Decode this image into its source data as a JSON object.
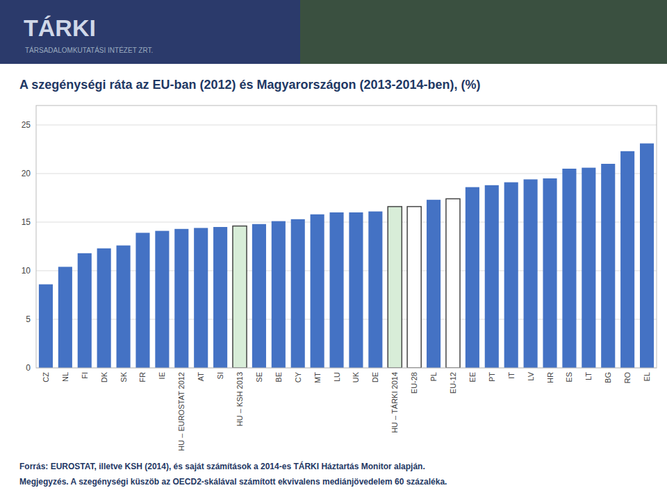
{
  "chart_data": {
    "type": "bar",
    "title": "A szegénységi ráta az EU-ban (2012) és Magyarországon (2013-2014-ben), (%)",
    "categories": [
      "CZ",
      "NL",
      "FI",
      "DK",
      "SK",
      "FR",
      "IE",
      "HU – EUROSTAT 2012",
      "AT",
      "SI",
      "HU – KSH 2013",
      "SE",
      "BE",
      "CY",
      "MT",
      "LU",
      "UK",
      "DE",
      "HU – TÁRKI 2014",
      "EU-28",
      "PL",
      "EU-12",
      "EE",
      "PT",
      "IT",
      "LV",
      "HR",
      "ES",
      "LT",
      "BG",
      "RO",
      "EL"
    ],
    "values": [
      8.6,
      10.4,
      11.8,
      12.3,
      12.6,
      13.9,
      14.1,
      14.3,
      14.4,
      14.5,
      14.6,
      14.8,
      15.1,
      15.3,
      15.8,
      16.0,
      16.0,
      16.1,
      16.6,
      16.6,
      17.3,
      17.4,
      18.6,
      18.8,
      19.1,
      19.4,
      19.5,
      20.5,
      20.6,
      21.0,
      22.3,
      23.1
    ],
    "colors": [
      "#4472C4",
      "#4472C4",
      "#4472C4",
      "#4472C4",
      "#4472C4",
      "#4472C4",
      "#4472C4",
      "#4472C4",
      "#4472C4",
      "#4472C4",
      "#D8EDD8",
      "#4472C4",
      "#4472C4",
      "#4472C4",
      "#4472C4",
      "#4472C4",
      "#4472C4",
      "#4472C4",
      "#D8EDD8",
      "#FFFFFF",
      "#4472C4",
      "#FFFFFF",
      "#4472C4",
      "#4472C4",
      "#4472C4",
      "#4472C4",
      "#4472C4",
      "#4472C4",
      "#4472C4",
      "#4472C4",
      "#4472C4",
      "#4472C4"
    ],
    "ylim": [
      0,
      27
    ],
    "yticks": [
      0,
      5,
      10,
      15,
      20,
      25
    ],
    "grid": true,
    "annotations": [
      "TÁRKI",
      "TÁRSADALOMKUTATÁSI INTÉZET ZRT.",
      "Forrás: EUROSTAT, illetve KSH (2014), és saját számítások a 2014-es TÁRKI Háztartás Monitor alapján.",
      "Megjegyzés. A szegénységi küszöb az OECD2-skálával számított ekvivalens mediánjövedelem 60 százaléka."
    ]
  }
}
